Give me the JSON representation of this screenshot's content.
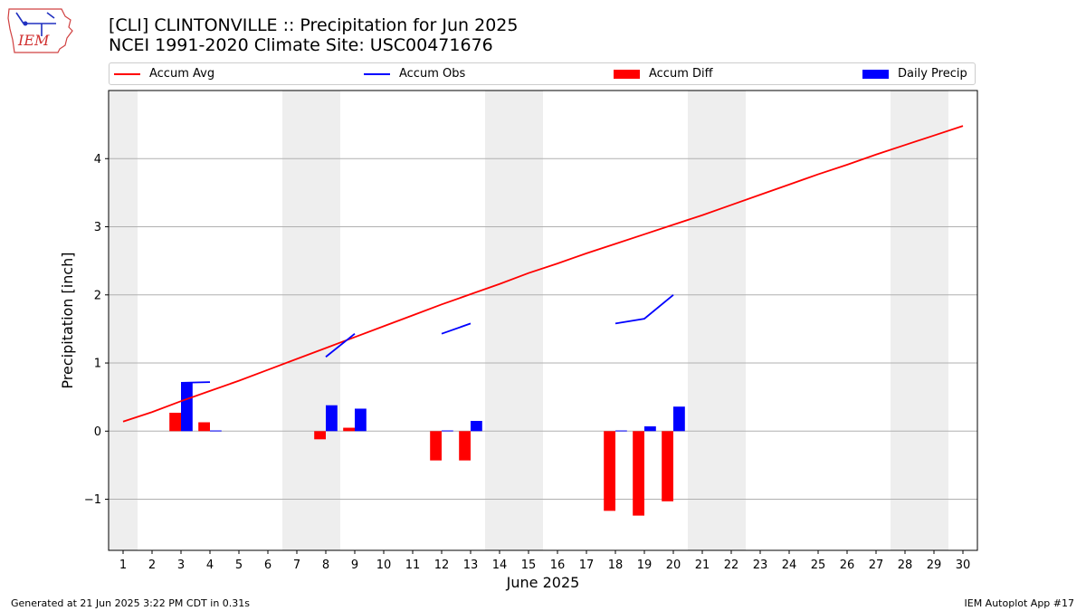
{
  "logo_text": "IEM",
  "title_line1": "[CLI] CLINTONVILLE :: Precipitation for Jun 2025",
  "title_line2": "NCEI 1991-2020 Climate Site: USC00471676",
  "footer_left": "Generated at 21 Jun 2025 3:22 PM CDT in 0.31s",
  "footer_right": "IEM Autoplot App #17",
  "legend": [
    {
      "label": "Accum Avg",
      "kind": "line",
      "color": "#ff0000"
    },
    {
      "label": "Accum Obs",
      "kind": "line",
      "color": "#0000ff"
    },
    {
      "label": "Accum Diff",
      "kind": "box",
      "color": "#ff0000"
    },
    {
      "label": "Daily Precip",
      "kind": "box",
      "color": "#0000ff"
    }
  ],
  "chart_data": {
    "type": "bar",
    "xlabel": "June 2025",
    "ylabel": "Precipitation [inch]",
    "xlim": [
      0.5,
      30.5
    ],
    "ylim": [
      -1.75,
      5.0
    ],
    "x_ticks": [
      1,
      2,
      3,
      4,
      5,
      6,
      7,
      8,
      9,
      10,
      11,
      12,
      13,
      14,
      15,
      16,
      17,
      18,
      19,
      20,
      21,
      22,
      23,
      24,
      25,
      26,
      27,
      28,
      29,
      30
    ],
    "y_ticks": [
      -1,
      0,
      1,
      2,
      3,
      4
    ],
    "y_tick_labels": [
      "−1",
      "0",
      "1",
      "2",
      "3",
      "4"
    ],
    "grid": "y",
    "weekend_shading": [
      [
        0.5,
        1.5
      ],
      [
        6.5,
        8.5
      ],
      [
        13.5,
        15.5
      ],
      [
        20.5,
        22.5
      ],
      [
        27.5,
        29.5
      ]
    ],
    "series": [
      {
        "name": "Accum Avg",
        "kind": "line",
        "color": "#ff0000",
        "x": [
          1,
          2,
          3,
          4,
          5,
          6,
          7,
          8,
          9,
          10,
          11,
          12,
          13,
          14,
          15,
          16,
          17,
          18,
          19,
          20,
          21,
          22,
          23,
          24,
          25,
          26,
          27,
          28,
          29,
          30
        ],
        "values": [
          0.14,
          0.28,
          0.44,
          0.59,
          0.74,
          0.9,
          1.06,
          1.22,
          1.38,
          1.54,
          1.7,
          1.86,
          2.01,
          2.16,
          2.32,
          2.46,
          2.61,
          2.75,
          2.89,
          3.03,
          3.17,
          3.32,
          3.47,
          3.62,
          3.77,
          3.91,
          4.06,
          4.2,
          4.34,
          4.48
        ]
      },
      {
        "name": "Accum Obs",
        "kind": "line",
        "color": "#0000ff",
        "segments": [
          {
            "x": [
              3,
              4
            ],
            "values": [
              0.71,
              0.72
            ]
          },
          {
            "x": [
              8,
              9
            ],
            "values": [
              1.09,
              1.43
            ]
          },
          {
            "x": [
              12,
              13
            ],
            "values": [
              1.43,
              1.58
            ]
          },
          {
            "x": [
              18,
              19,
              20
            ],
            "values": [
              1.58,
              1.65,
              2.0
            ]
          }
        ]
      },
      {
        "name": "Accum Diff",
        "kind": "bar",
        "color": "#ff0000",
        "x": [
          3,
          4,
          8,
          9,
          12,
          13,
          18,
          19,
          20
        ],
        "values": [
          0.27,
          0.13,
          -0.12,
          0.05,
          -0.43,
          -0.43,
          -1.17,
          -1.24,
          -1.03
        ]
      },
      {
        "name": "Daily Precip",
        "kind": "bar",
        "color": "#0000ff",
        "x": [
          3,
          4,
          8,
          9,
          12,
          13,
          18,
          19,
          20
        ],
        "values": [
          0.71,
          0.01,
          0.38,
          0.33,
          0.01,
          0.15,
          0.01,
          0.07,
          0.36
        ]
      }
    ]
  }
}
